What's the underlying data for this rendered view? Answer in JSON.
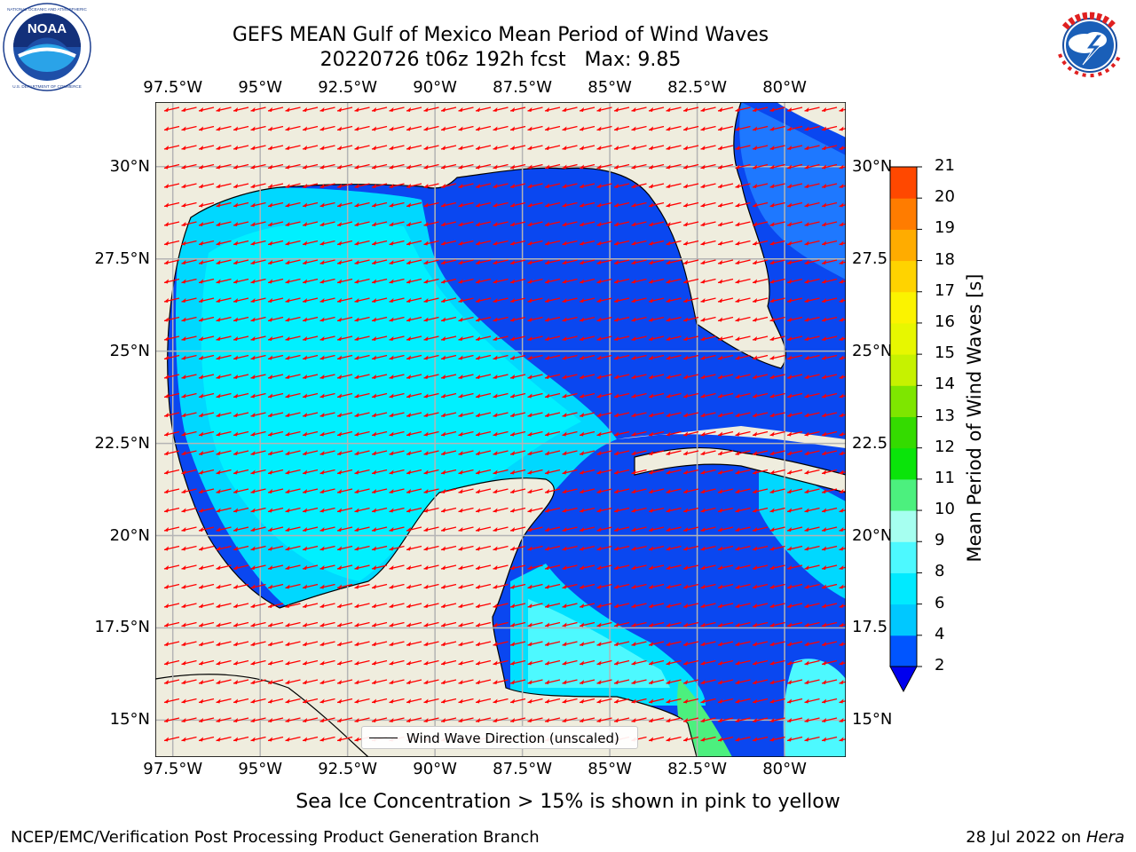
{
  "header": {
    "title_line1": "GEFS MEAN Gulf of Mexico Mean Period of Wind Waves",
    "title_line2": "20220726 t06z 192h fcst   Max: 9.85"
  },
  "logos": {
    "noaa": {
      "text": "NOAA",
      "ring_text": "NATIONAL OCEANIC AND ATMOSPHERIC ADMINISTRATION · U.S. DEPARTMENT OF COMMERCE"
    },
    "nws": {
      "ring_text": "NATIONAL WEATHER SERVICE"
    }
  },
  "map": {
    "lon_ticks": [
      "97.5°W",
      "95°W",
      "92.5°W",
      "90°W",
      "87.5°W",
      "85°W",
      "82.5°W",
      "80°W"
    ],
    "lat_ticks": [
      "30°N",
      "27.5°N",
      "25°N",
      "22.5°N",
      "20°N",
      "17.5°N",
      "15°N"
    ],
    "lat_ticks_right": [
      "30°N",
      "27.5",
      "25°N",
      "22.5",
      "20°N",
      "17.5",
      "15°N"
    ],
    "lon_range": [
      -98,
      -78.25
    ],
    "lat_range": [
      14.0,
      31.75
    ],
    "legend_label": "Wind Wave Direction (unscaled)",
    "arrow_direction_deg": 260,
    "colors": {
      "land": "#efedde",
      "coast": "#000000",
      "grid": "#b4b4b4",
      "arrow": "#ff0000",
      "frame": "#000000"
    }
  },
  "colorbar": {
    "label": "Mean Period of Wind Waves [s]",
    "tick_labels": [
      "2",
      "4",
      "6",
      "8",
      "9",
      "10",
      "11",
      "12",
      "13",
      "14",
      "15",
      "16",
      "17",
      "18",
      "19",
      "20",
      "21"
    ],
    "colors": [
      "#0055ff",
      "#00c8ff",
      "#00eaff",
      "#4df9ff",
      "#a6fff0",
      "#4cf07e",
      "#0ae40a",
      "#34db00",
      "#7ee600",
      "#c6f200",
      "#e7f700",
      "#fbf300",
      "#ffd300",
      "#ffac00",
      "#ff7c00",
      "#ff4800",
      "#ff1700"
    ],
    "extend_color": "#0000ee"
  },
  "sea_ice_note": "Sea Ice Concentration > 15% is shown in pink to yellow",
  "footer": {
    "left": "NCEP/EMC/Verification Post Processing Product Generation Branch",
    "date": "28 Jul 2022 on ",
    "machine": "Hera"
  }
}
